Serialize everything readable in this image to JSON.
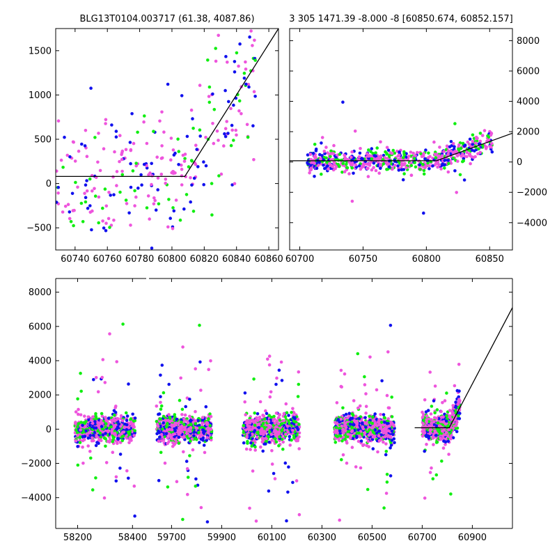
{
  "titles": {
    "left": "BLG13T0104.003717 (61.38, 4087.86)",
    "right": "3 305 1471.39 -8.000 -8 [60850.674, 60852.157]"
  },
  "series_colors": {
    "magenta": "#ee55dd",
    "green": "#11ee11",
    "blue": "#1111ee"
  },
  "model_line_color": "#000000",
  "chart_data": [
    {
      "panel": "top-left",
      "type": "scatter",
      "xlim": [
        60728,
        60866
      ],
      "ylim": [
        -750,
        1750
      ],
      "x_ticks": [
        60740,
        60760,
        60780,
        60800,
        60820,
        60840,
        60860
      ],
      "y_ticks": [
        -500,
        0,
        500,
        1000,
        1500
      ],
      "y_axis_side": "left",
      "model_line": [
        [
          60728,
          80
        ],
        [
          60808,
          80
        ],
        [
          60866,
          1750
        ]
      ],
      "point_seed": 11,
      "point_count": 380,
      "point_spread": 420
    },
    {
      "panel": "top-right",
      "type": "scatter",
      "xlim": [
        60692,
        60868
      ],
      "ylim": [
        -5800,
        8800
      ],
      "x_ticks": [
        60700,
        60750,
        60800,
        60850
      ],
      "y_ticks": [
        -4000,
        -2000,
        0,
        2000,
        4000,
        6000,
        8000
      ],
      "y_axis_side": "right",
      "model_line": [
        [
          60692,
          80
        ],
        [
          60808,
          80
        ],
        [
          60868,
          1900
        ]
      ],
      "point_seed": 23,
      "point_count": 700,
      "point_spread": 380
    },
    {
      "panel": "bottom",
      "type": "scatter",
      "ylim": [
        -5800,
        8800
      ],
      "y_ticks": [
        -4000,
        -2000,
        0,
        2000,
        4000,
        6000,
        8000
      ],
      "y_axis_side": "left",
      "segments": [
        {
          "xlim": [
            58120,
            58450
          ],
          "x_ticks": [
            58200,
            58400
          ]
        },
        {
          "xlim": [
            59610,
            61060
          ],
          "x_ticks": [
            59700,
            59900,
            60100,
            60300,
            60500,
            60700,
            60900
          ]
        }
      ],
      "seasons": [
        {
          "x0": 58190,
          "x1": 58410,
          "count": 650
        },
        {
          "x0": 59640,
          "x1": 59860,
          "count": 750
        },
        {
          "x0": 59985,
          "x1": 60210,
          "count": 750
        },
        {
          "x0": 60350,
          "x1": 60590,
          "count": 750
        },
        {
          "x0": 60700,
          "x1": 60850,
          "count": 650
        }
      ],
      "model_line": [
        [
          60670,
          80
        ],
        [
          60808,
          80
        ],
        [
          61060,
          7100
        ]
      ],
      "point_seed": 37,
      "point_spread": 380
    }
  ]
}
